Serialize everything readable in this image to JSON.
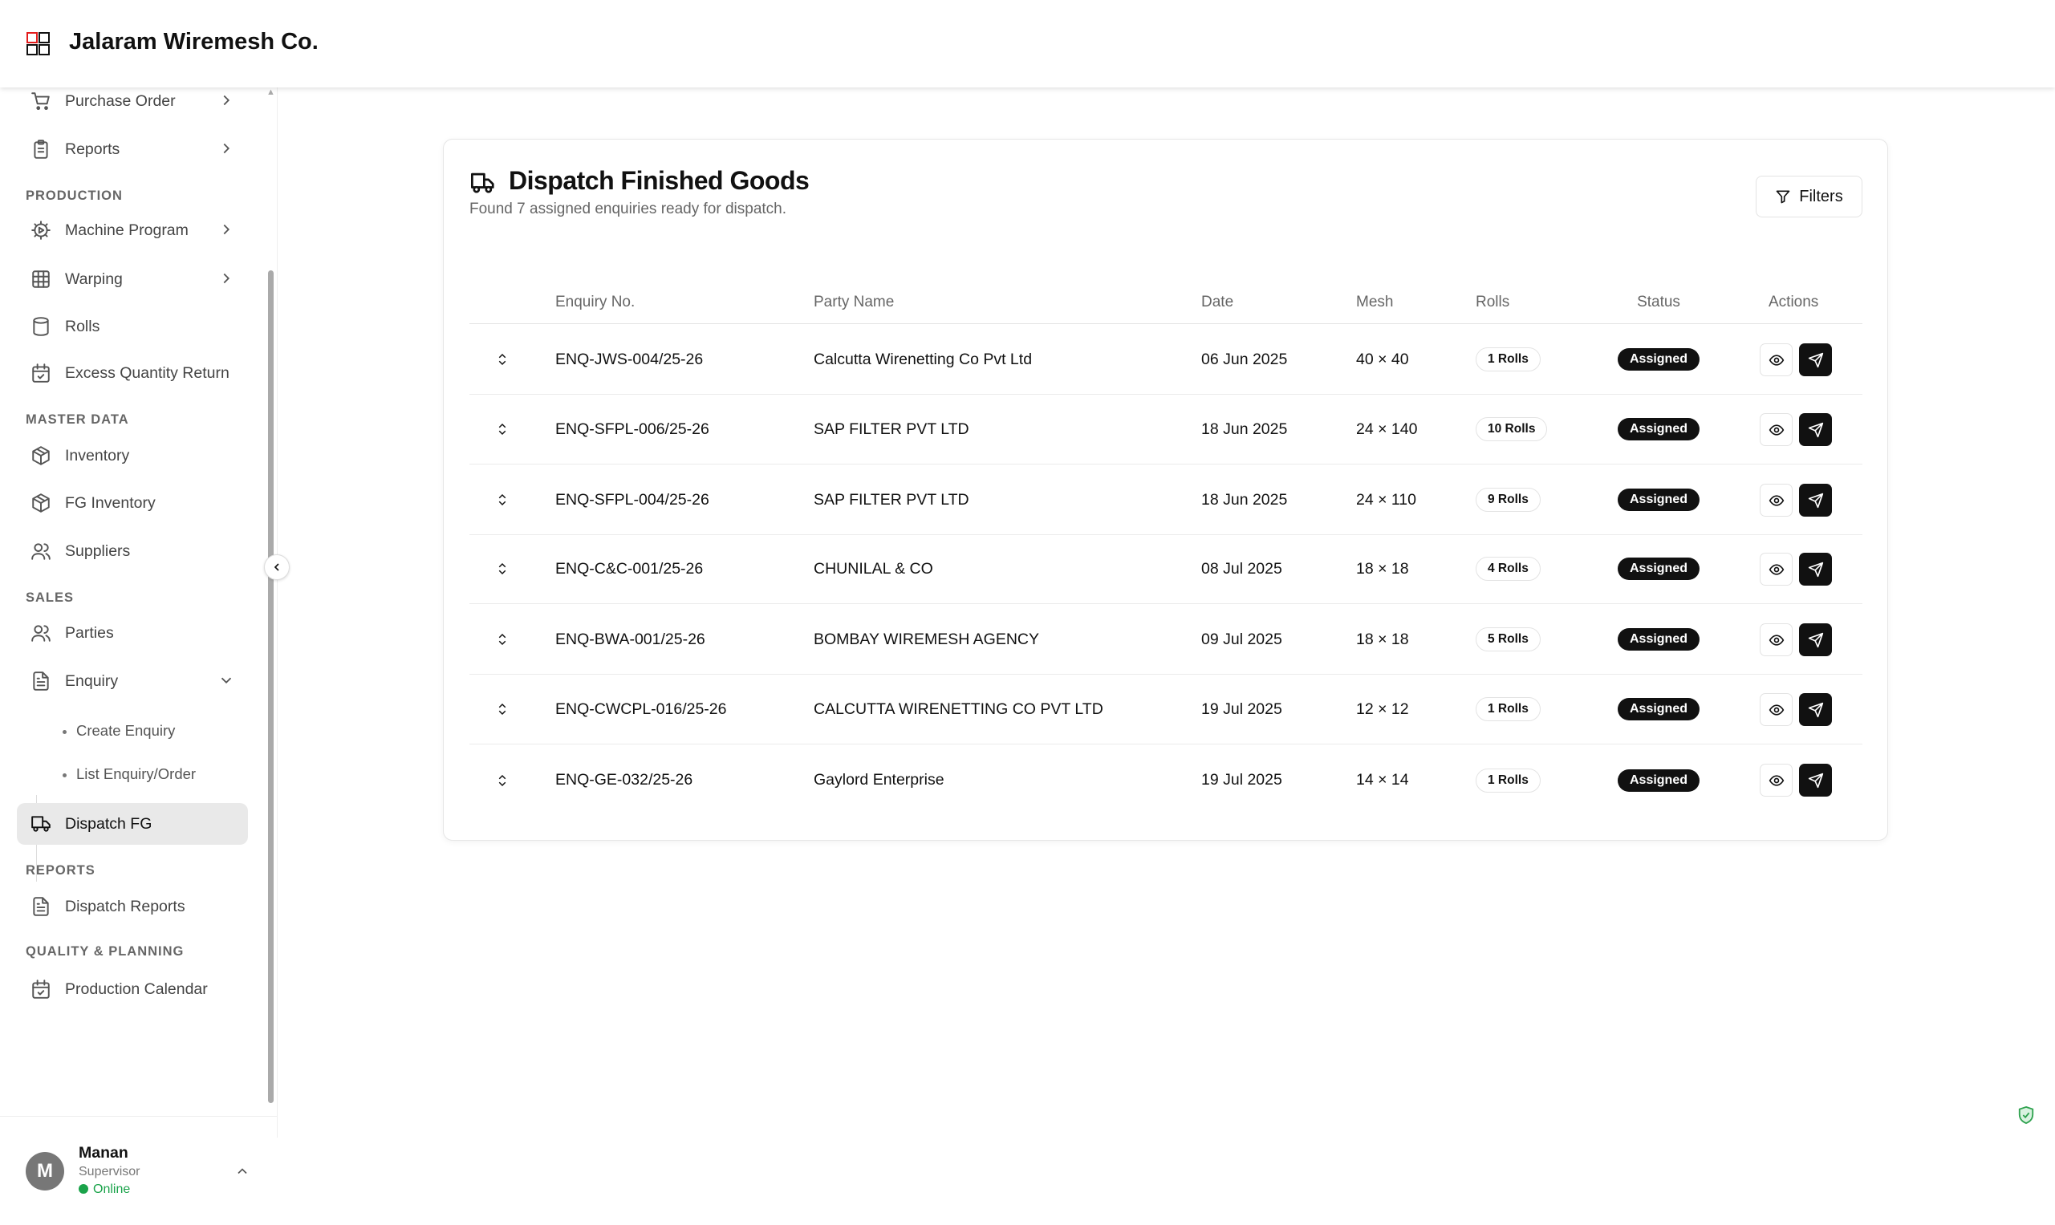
{
  "app": {
    "brand": "Jalaram Wiremesh Co."
  },
  "sidebar": {
    "items": [
      {
        "label": "Purchase Order",
        "icon": "cart-icon",
        "chevron": "right"
      },
      {
        "label": "Reports",
        "icon": "clipboard-list-icon",
        "chevron": "right"
      },
      {
        "section": "PRODUCTION"
      },
      {
        "label": "Machine Program",
        "icon": "cog-play-icon",
        "chevron": "right"
      },
      {
        "label": "Warping",
        "icon": "grid-icon",
        "chevron": "right"
      },
      {
        "label": "Rolls",
        "icon": "cylinder-icon"
      },
      {
        "label": "Excess Quantity Return",
        "icon": "calendar-check-icon"
      },
      {
        "section": "MASTER DATA"
      },
      {
        "label": "Inventory",
        "icon": "package-icon"
      },
      {
        "label": "FG Inventory",
        "icon": "package-icon"
      },
      {
        "label": "Suppliers",
        "icon": "users-icon"
      },
      {
        "section": "SALES"
      },
      {
        "label": "Parties",
        "icon": "users-icon"
      },
      {
        "label": "Enquiry",
        "icon": "file-text-icon",
        "chevron": "down"
      },
      {
        "sub": "Create Enquiry"
      },
      {
        "sub": "List Enquiry/Order"
      },
      {
        "label": "Dispatch FG",
        "icon": "truck-icon",
        "active": true
      },
      {
        "section": "REPORTS"
      },
      {
        "label": "Dispatch Reports",
        "icon": "file-text-icon"
      },
      {
        "section": "QUALITY & PLANNING"
      },
      {
        "label": "Production Calendar",
        "icon": "calendar-check-icon"
      }
    ],
    "user": {
      "initial": "M",
      "name": "Manan",
      "role": "Supervisor",
      "status": "Online",
      "status_color": "#1aa34a"
    }
  },
  "main": {
    "title": "Dispatch Finished Goods",
    "subtitle": "Found 7 assigned enquiries ready for dispatch.",
    "filters_label": "Filters",
    "columns": [
      "Enquiry No.",
      "Party Name",
      "Date",
      "Mesh",
      "Rolls",
      "Status",
      "Actions"
    ],
    "rows": [
      {
        "enquiry": "ENQ-JWS-004/25-26",
        "party": "Calcutta Wirenetting Co Pvt Ltd",
        "date": "06 Jun 2025",
        "mesh": "40 × 40",
        "rolls": "1 Rolls",
        "status": "Assigned"
      },
      {
        "enquiry": "ENQ-SFPL-006/25-26",
        "party": "SAP FILTER PVT LTD",
        "date": "18 Jun 2025",
        "mesh": "24 × 140",
        "rolls": "10 Rolls",
        "status": "Assigned"
      },
      {
        "enquiry": "ENQ-SFPL-004/25-26",
        "party": "SAP FILTER PVT LTD",
        "date": "18 Jun 2025",
        "mesh": "24 × 110",
        "rolls": "9 Rolls",
        "status": "Assigned"
      },
      {
        "enquiry": "ENQ-C&C-001/25-26",
        "party": "CHUNILAL & CO",
        "date": "08 Jul 2025",
        "mesh": "18 × 18",
        "rolls": "4 Rolls",
        "status": "Assigned"
      },
      {
        "enquiry": "ENQ-BWA-001/25-26",
        "party": "BOMBAY WIREMESH AGENCY",
        "date": "09 Jul 2025",
        "mesh": "18 × 18",
        "rolls": "5 Rolls",
        "status": "Assigned"
      },
      {
        "enquiry": "ENQ-CWCPL-016/25-26",
        "party": "CALCUTTA WIRENETTING CO PVT LTD",
        "date": "19 Jul 2025",
        "mesh": "12 × 12",
        "rolls": "1 Rolls",
        "status": "Assigned"
      },
      {
        "enquiry": "ENQ-GE-032/25-26",
        "party": "Gaylord Enterprise",
        "date": "19 Jul 2025",
        "mesh": "14 × 14",
        "rolls": "1 Rolls",
        "status": "Assigned"
      }
    ]
  }
}
